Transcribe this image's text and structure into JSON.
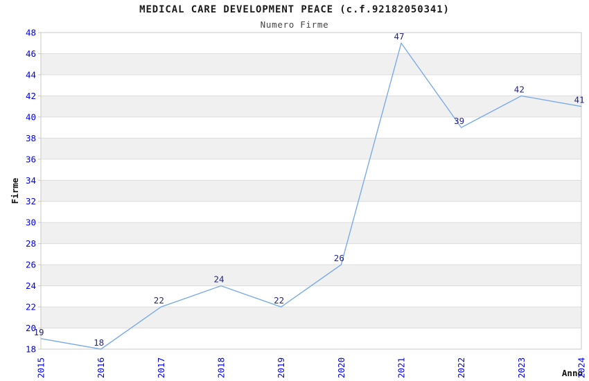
{
  "header": {
    "title": "MEDICAL CARE DEVELOPMENT PEACE (c.f.92182050341)",
    "subtitle": "Numero Firme"
  },
  "chart_data": {
    "type": "line",
    "title": "MEDICAL CARE DEVELOPMENT PEACE (c.f.92182050341)",
    "subtitle": "Numero Firme",
    "xlabel": "Anno",
    "ylabel": "Firme",
    "categories": [
      "2015",
      "2016",
      "2017",
      "2018",
      "2019",
      "2020",
      "2021",
      "2022",
      "2023",
      "2024"
    ],
    "values": [
      19,
      18,
      22,
      24,
      22,
      26,
      47,
      39,
      42,
      41
    ],
    "data_labels": [
      "19",
      "18",
      "22",
      "24",
      "22",
      "26",
      "47",
      "39",
      "42",
      "41"
    ],
    "ylim": [
      18,
      48
    ],
    "ytick_step": 2,
    "ytick_labels": [
      "18",
      "20",
      "22",
      "24",
      "26",
      "28",
      "30",
      "32",
      "34",
      "36",
      "38",
      "40",
      "42",
      "44",
      "46",
      "48"
    ],
    "grid": "horizontal-bands-on",
    "legend_position": "none",
    "colors": {
      "line": "#7aabe9",
      "tick_label": "#0000ee",
      "data_label": "#252582",
      "band_fill": "#f0f0f0",
      "band_alt_fill": "#ffffff",
      "gridline": "#dcdcdc",
      "plot_border": "#c8c8c8",
      "title_text": "#1a1a1a",
      "subtitle_text": "#444444",
      "axis_label_text": "#111111",
      "background": "#ffffff"
    }
  }
}
